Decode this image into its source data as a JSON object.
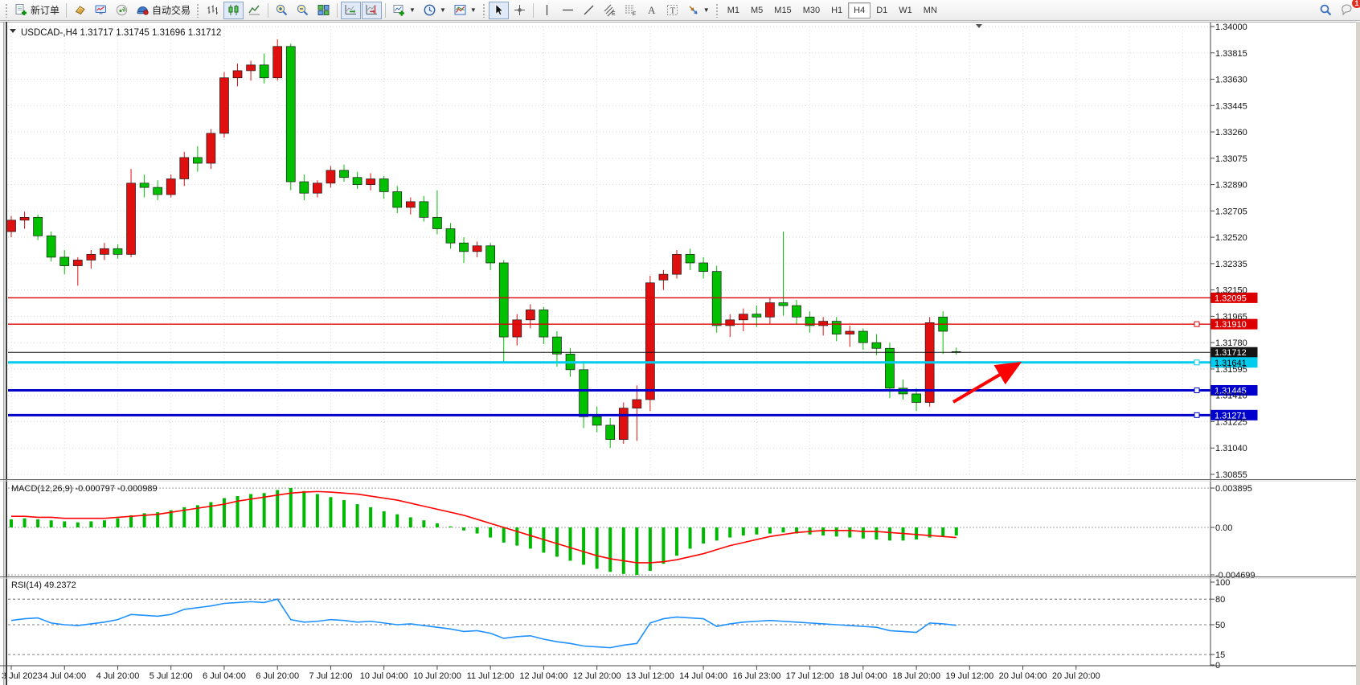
{
  "toolbar": {
    "new_order": "新订单",
    "auto_trading": "自动交易",
    "timeframes": [
      "M1",
      "M5",
      "M15",
      "M30",
      "H1",
      "H4",
      "D1",
      "W1",
      "MN"
    ],
    "active_timeframe": "H4",
    "chat_badge": "1",
    "icons": [
      "new-order-icon",
      "bucket-icon",
      "market-watch-icon",
      "signal-icon",
      "autotrading-cap-icon",
      "bar-chart-icon",
      "candlestick-icon",
      "line-chart-icon",
      "zoom-in-icon",
      "zoom-out-icon",
      "tile-windows-icon",
      "auto-scroll-icon",
      "chart-shift-icon",
      "indicators-icon",
      "periods-icon",
      "templates-icon",
      "cursor-icon",
      "crosshair-icon",
      "vertical-line-icon",
      "horizontal-line-icon",
      "trendline-icon",
      "channel-icon",
      "fibonacci-icon",
      "text-icon",
      "label-icon",
      "arrows-icon",
      "search-icon",
      "chat-icon"
    ]
  },
  "chart": {
    "symbol_line": "USDCAD-,H4",
    "ohlc": "1.31717 1.31745 1.31696 1.31712",
    "macd_label": "MACD(12,26,9) -0.000797 -0.000989",
    "rsi_label": "RSI(14) 49.2372"
  },
  "chart_data": {
    "type": "candlestick",
    "symbol": "USDCAD",
    "timeframe": "H4",
    "price_axis": [
      "1.34000",
      "1.33815",
      "1.33630",
      "1.33445",
      "1.33260",
      "1.33075",
      "1.32890",
      "1.32705",
      "1.32520",
      "1.32335",
      "1.32150",
      "1.31965",
      "1.31780",
      "1.31595",
      "1.31410",
      "1.31225",
      "1.31040",
      "1.30855"
    ],
    "time_axis": [
      "3 Jul 2023",
      "4 Jul 04:00",
      "4 Jul 20:00",
      "5 Jul 12:00",
      "6 Jul 04:00",
      "6 Jul 20:00",
      "7 Jul 12:00",
      "10 Jul 04:00",
      "10 Jul 20:00",
      "11 Jul 12:00",
      "12 Jul 04:00",
      "12 Jul 20:00",
      "13 Jul 12:00",
      "14 Jul 04:00",
      "16 Jul 23:00",
      "17 Jul 12:00",
      "18 Jul 04:00",
      "18 Jul 20:00",
      "19 Jul 12:00",
      "20 Jul 04:00",
      "20 Jul 20:00"
    ],
    "colors": {
      "bull": "#e01010",
      "bear": "#00c000",
      "macd_hist": "#00b800",
      "macd_signal": "#ff0000",
      "rsi_line": "#1e90ff",
      "grid": "#dadada"
    },
    "candles": [
      [
        1.3256,
        1.3267,
        1.3252,
        1.3264
      ],
      [
        1.3264,
        1.327,
        1.3258,
        1.3266
      ],
      [
        1.3266,
        1.3268,
        1.325,
        1.3253
      ],
      [
        1.3253,
        1.3256,
        1.3235,
        1.3238
      ],
      [
        1.3238,
        1.3243,
        1.3226,
        1.3232
      ],
      [
        1.3232,
        1.3238,
        1.3218,
        1.3236
      ],
      [
        1.3236,
        1.3243,
        1.323,
        1.324
      ],
      [
        1.324,
        1.3248,
        1.3236,
        1.3244
      ],
      [
        1.3244,
        1.3247,
        1.3237,
        1.324
      ],
      [
        1.324,
        1.33,
        1.3238,
        1.329
      ],
      [
        1.329,
        1.3296,
        1.328,
        1.3287
      ],
      [
        1.3287,
        1.3292,
        1.3278,
        1.3282
      ],
      [
        1.3282,
        1.3296,
        1.328,
        1.3293
      ],
      [
        1.3293,
        1.3312,
        1.3288,
        1.3308
      ],
      [
        1.3308,
        1.3316,
        1.3298,
        1.3304
      ],
      [
        1.3304,
        1.3328,
        1.33,
        1.3325
      ],
      [
        1.3325,
        1.3368,
        1.3322,
        1.3364
      ],
      [
        1.3364,
        1.3374,
        1.3358,
        1.3369
      ],
      [
        1.3369,
        1.3376,
        1.3362,
        1.3373
      ],
      [
        1.3373,
        1.3381,
        1.336,
        1.3364
      ],
      [
        1.3364,
        1.3391,
        1.3362,
        1.3386
      ],
      [
        1.3386,
        1.3388,
        1.3285,
        1.3291
      ],
      [
        1.3291,
        1.3296,
        1.3278,
        1.3283
      ],
      [
        1.3283,
        1.3292,
        1.328,
        1.329
      ],
      [
        1.329,
        1.3302,
        1.3287,
        1.3299
      ],
      [
        1.3299,
        1.3303,
        1.3291,
        1.3294
      ],
      [
        1.3294,
        1.3298,
        1.3286,
        1.3289
      ],
      [
        1.3289,
        1.3297,
        1.3285,
        1.3293
      ],
      [
        1.3293,
        1.3295,
        1.3279,
        1.3284
      ],
      [
        1.3284,
        1.3288,
        1.3269,
        1.3273
      ],
      [
        1.3273,
        1.328,
        1.3268,
        1.3277
      ],
      [
        1.3277,
        1.3281,
        1.3263,
        1.3266
      ],
      [
        1.3266,
        1.3285,
        1.3254,
        1.3258
      ],
      [
        1.3258,
        1.3262,
        1.3244,
        1.3248
      ],
      [
        1.3248,
        1.3252,
        1.3234,
        1.3242
      ],
      [
        1.3242,
        1.3249,
        1.3238,
        1.3246
      ],
      [
        1.3246,
        1.3248,
        1.3229,
        1.3234
      ],
      [
        1.3234,
        1.3236,
        1.3164,
        1.3182
      ],
      [
        1.3182,
        1.3198,
        1.3176,
        1.3194
      ],
      [
        1.3194,
        1.3205,
        1.3188,
        1.3201
      ],
      [
        1.3201,
        1.3203,
        1.3177,
        1.3182
      ],
      [
        1.3182,
        1.3186,
        1.3161,
        1.317
      ],
      [
        1.317,
        1.3174,
        1.3154,
        1.3159
      ],
      [
        1.3159,
        1.3165,
        1.3118,
        1.3126
      ],
      [
        1.3126,
        1.3133,
        1.3115,
        1.312
      ],
      [
        1.312,
        1.3125,
        1.3104,
        1.311
      ],
      [
        1.311,
        1.3136,
        1.3107,
        1.3132
      ],
      [
        1.3132,
        1.3148,
        1.3109,
        1.3138
      ],
      [
        1.3138,
        1.3225,
        1.313,
        1.322
      ],
      [
        1.3222,
        1.3229,
        1.3215,
        1.3226
      ],
      [
        1.3226,
        1.3243,
        1.3223,
        1.324
      ],
      [
        1.324,
        1.3244,
        1.3229,
        1.3234
      ],
      [
        1.3234,
        1.3238,
        1.3223,
        1.3228
      ],
      [
        1.3228,
        1.3232,
        1.3185,
        1.319
      ],
      [
        1.319,
        1.3198,
        1.3182,
        1.3194
      ],
      [
        1.3194,
        1.3202,
        1.3186,
        1.3198
      ],
      [
        1.3198,
        1.3204,
        1.3189,
        1.3196
      ],
      [
        1.3196,
        1.321,
        1.3191,
        1.3206
      ],
      [
        1.3206,
        1.3256,
        1.3197,
        1.3204
      ],
      [
        1.3204,
        1.3208,
        1.3191,
        1.3196
      ],
      [
        1.3196,
        1.32,
        1.3185,
        1.319
      ],
      [
        1.319,
        1.3196,
        1.3183,
        1.3193
      ],
      [
        1.3193,
        1.3196,
        1.3179,
        1.3184
      ],
      [
        1.3184,
        1.319,
        1.3175,
        1.3186
      ],
      [
        1.3186,
        1.3188,
        1.3173,
        1.3178
      ],
      [
        1.3178,
        1.3184,
        1.3169,
        1.3174
      ],
      [
        1.3174,
        1.3178,
        1.3139,
        1.3146
      ],
      [
        1.3146,
        1.3152,
        1.3138,
        1.3142
      ],
      [
        1.3142,
        1.3146,
        1.313,
        1.3136
      ],
      [
        1.3136,
        1.3196,
        1.3133,
        1.3192
      ],
      [
        1.3196,
        1.32,
        1.317,
        1.3186
      ],
      [
        1.31717,
        1.31745,
        1.31696,
        1.31712
      ]
    ],
    "hlines": [
      {
        "label": "1.32095",
        "price": 1.32095,
        "color": "#dd0000",
        "width": 1.4,
        "label_bg": "#dd0000",
        "label_fg": "#ffffff",
        "handle": false
      },
      {
        "label": "1.31910",
        "price": 1.3191,
        "color": "#dd0000",
        "width": 1.4,
        "label_bg": "#dd0000",
        "label_fg": "#ffffff",
        "handle": true
      },
      {
        "label": "1.31712",
        "price": 1.31712,
        "color": "#141414",
        "width": 1,
        "label_bg": "#141414",
        "label_fg": "#ffffff",
        "handle": false
      },
      {
        "label": "1.31641",
        "price": 1.31641,
        "color": "#00ccee",
        "width": 3,
        "label_bg": "#00ccee",
        "label_fg": "#000000",
        "handle": true
      },
      {
        "label": "1.31445",
        "price": 1.31445,
        "color": "#0000cc",
        "width": 3,
        "label_bg": "#0000cc",
        "label_fg": "#ffffff",
        "handle": true
      },
      {
        "label": "1.31271",
        "price": 1.31271,
        "color": "#0000cc",
        "width": 3,
        "label_bg": "#0000cc",
        "label_fg": "#ffffff",
        "handle": true
      }
    ],
    "arrow_annotation": {
      "from": [
        1186,
        473
      ],
      "to": [
        1266,
        426
      ],
      "color": "#ff0000"
    },
    "macd": {
      "axis_labels": [
        "0.003895",
        "0.00",
        "-0.004699"
      ],
      "axis_values": [
        0.003895,
        0,
        -0.004699
      ],
      "histogram": [
        0.0008,
        0.0009,
        0.0008,
        0.0007,
        0.0006,
        0.0005,
        0.0006,
        0.0007,
        0.0009,
        0.0012,
        0.0014,
        0.0015,
        0.0017,
        0.002,
        0.0022,
        0.0025,
        0.0029,
        0.0031,
        0.0033,
        0.0034,
        0.0037,
        0.0039,
        0.0036,
        0.0033,
        0.003,
        0.0027,
        0.0023,
        0.002,
        0.0016,
        0.0013,
        0.001,
        0.0007,
        0.0004,
        0.0001,
        -0.0003,
        -0.0006,
        -0.001,
        -0.0015,
        -0.0018,
        -0.0021,
        -0.0025,
        -0.0029,
        -0.0033,
        -0.0037,
        -0.0041,
        -0.0044,
        -0.0046,
        -0.0047,
        -0.0043,
        -0.0036,
        -0.0028,
        -0.0021,
        -0.0016,
        -0.0013,
        -0.001,
        -0.0008,
        -0.0007,
        -0.0006,
        -0.0005,
        -0.0006,
        -0.0007,
        -0.0008,
        -0.0009,
        -0.001,
        -0.0011,
        -0.0012,
        -0.0013,
        -0.0013,
        -0.0012,
        -0.001,
        -0.0009,
        -0.0008
      ],
      "signal": [
        0.0011,
        0.0011,
        0.001,
        0.001,
        0.0009,
        0.0009,
        0.0009,
        0.0009,
        0.001,
        0.0011,
        0.0012,
        0.0013,
        0.0015,
        0.0017,
        0.0019,
        0.0021,
        0.0023,
        0.0026,
        0.0028,
        0.003,
        0.0032,
        0.0034,
        0.0035,
        0.00355,
        0.0035,
        0.0034,
        0.0033,
        0.0031,
        0.0029,
        0.0027,
        0.0024,
        0.0021,
        0.0018,
        0.0015,
        0.0012,
        0.0008,
        0.0004,
        0.0,
        -0.0004,
        -0.0008,
        -0.0012,
        -0.0016,
        -0.002,
        -0.0024,
        -0.0028,
        -0.0031,
        -0.0033,
        -0.0035,
        -0.0035,
        -0.0034,
        -0.0032,
        -0.0029,
        -0.0026,
        -0.0022,
        -0.0018,
        -0.0015,
        -0.0012,
        -0.0009,
        -0.0007,
        -0.0005,
        -0.0004,
        -0.0003,
        -0.0003,
        -0.0003,
        -0.0004,
        -0.0004,
        -0.0005,
        -0.0006,
        -0.0007,
        -0.0008,
        -0.0009,
        -0.001
      ]
    },
    "rsi": {
      "axis_labels": [
        "100",
        "80",
        "50",
        "15",
        "0"
      ],
      "dashed_levels": [
        80,
        50,
        15
      ],
      "values": [
        55,
        57,
        58,
        52,
        50,
        49,
        51,
        53,
        56,
        62,
        61,
        60,
        62,
        68,
        70,
        72,
        75,
        76,
        77,
        76,
        80,
        56,
        53,
        54,
        56,
        55,
        53,
        54,
        52,
        50,
        51,
        49,
        47,
        45,
        42,
        43,
        40,
        34,
        36,
        37,
        33,
        30,
        28,
        25,
        24,
        23,
        26,
        28,
        52,
        57,
        59,
        58,
        57,
        48,
        51,
        53,
        54,
        55,
        54,
        53,
        52,
        51,
        50,
        49,
        48,
        47,
        43,
        42,
        41,
        52,
        51,
        49.24
      ]
    }
  }
}
